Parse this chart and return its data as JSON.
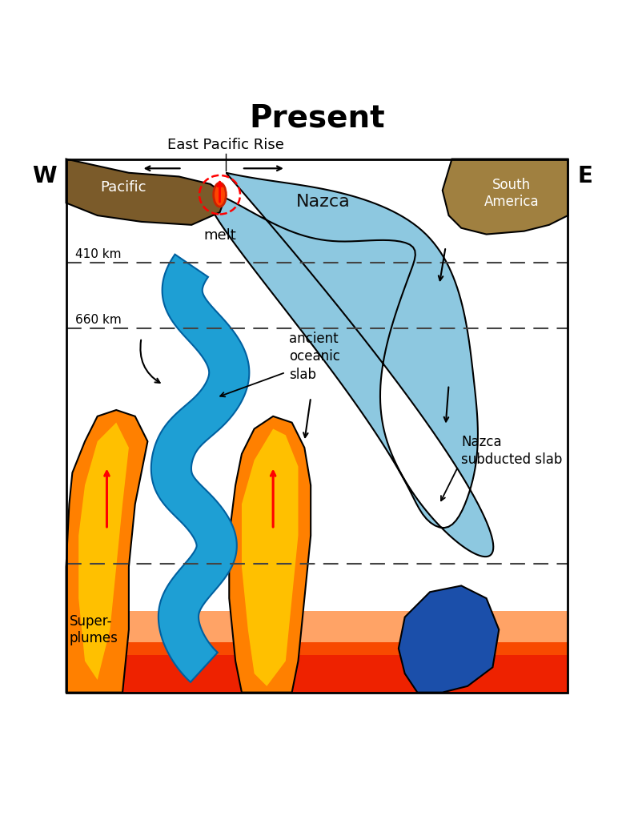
{
  "title": "Present",
  "title_fontsize": 28,
  "bg_color": "#ffffff",
  "pacific_color": "#7B5B2A",
  "south_america_color": "#A08040",
  "nazca_light_color": "#8DC8E0",
  "ancient_slab_color": "#1E9FD4",
  "ancient_slab_edge": "#0060A0",
  "superplume_orange": "#FF8000",
  "superplume_yellow": "#FFD700",
  "superplume_red": "#FF2200",
  "blue_blob_color": "#1B4FAA",
  "melt_color": "#FF4500",
  "label_410": "410 km",
  "label_660": "660 km",
  "label_pacific": "Pacific",
  "label_nazca": "Nazca",
  "label_south_america": "South\nAmerica",
  "label_melt": "melt",
  "label_ancient": "ancient\noceanic\nslab",
  "label_nazca_sub": "Nazca\nsubducted slab",
  "label_superplumes": "Super-\nplumes",
  "label_epr": "East Pacific Rise",
  "label_W": "W",
  "label_E": "E"
}
